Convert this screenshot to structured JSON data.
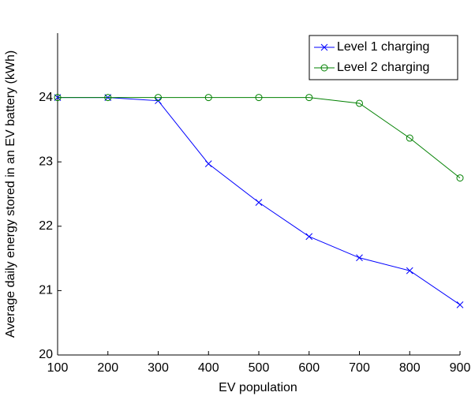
{
  "chart_data": {
    "type": "line",
    "x_label": "EV population",
    "y_label": "Average daily energy stored in an EV battery (kWh)",
    "x": [
      100,
      200,
      300,
      400,
      500,
      600,
      700,
      800,
      900
    ],
    "series": [
      {
        "name": "Level 1 charging",
        "color": "#0000ff",
        "marker": "x",
        "values": [
          24,
          24,
          23.95,
          22.97,
          22.37,
          21.84,
          21.51,
          21.31,
          20.78
        ]
      },
      {
        "name": "Level 2 charging",
        "color": "#008000",
        "marker": "o",
        "values": [
          24,
          24,
          24,
          24,
          24,
          24,
          23.91,
          23.37,
          22.75
        ]
      }
    ],
    "xlim": [
      100,
      900
    ],
    "xticks": [
      100,
      200,
      300,
      400,
      500,
      600,
      700,
      800,
      900
    ],
    "ylim": [
      20,
      25
    ],
    "yticks": [
      20,
      21,
      22,
      23,
      24
    ],
    "legend": "top-right"
  }
}
